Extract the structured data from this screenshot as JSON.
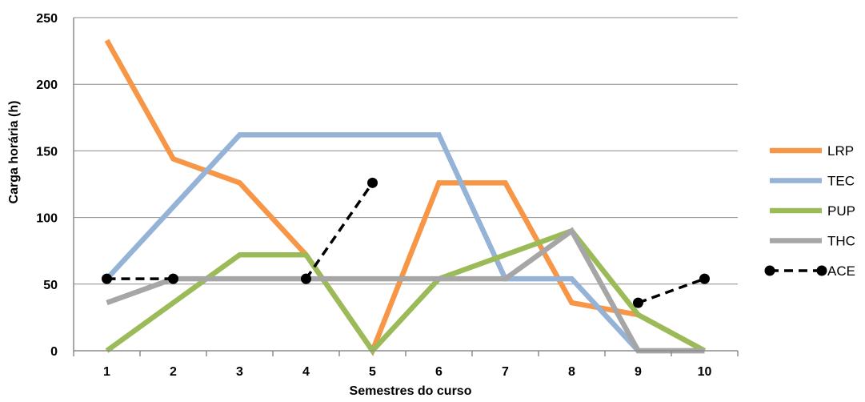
{
  "chart_data": {
    "type": "line",
    "title": "",
    "xlabel": "Semestres do curso",
    "ylabel": "Carga horária (h)",
    "categories": [
      "1",
      "2",
      "3",
      "4",
      "5",
      "6",
      "7",
      "8",
      "9",
      "10"
    ],
    "yticks": [
      "0",
      "50",
      "100",
      "150",
      "200",
      "250"
    ],
    "ylim": [
      0,
      250
    ],
    "grid": "horizontal",
    "legend_position": "right",
    "series": [
      {
        "name": "LRP",
        "color": "#F79646",
        "style": "solid",
        "values": [
          233,
          144,
          126,
          72,
          0,
          126,
          126,
          36,
          27,
          0
        ]
      },
      {
        "name": "TEC",
        "color": "#95B3D7",
        "style": "solid",
        "values": [
          54,
          108,
          162,
          162,
          162,
          162,
          54,
          54,
          0,
          0
        ]
      },
      {
        "name": "PUP",
        "color": "#9BBB59",
        "style": "solid",
        "values": [
          0,
          36,
          72,
          72,
          0,
          54,
          72,
          90,
          27,
          0
        ]
      },
      {
        "name": "THC",
        "color": "#A6A6A6",
        "style": "solid",
        "values": [
          36,
          54,
          54,
          54,
          54,
          54,
          54,
          90,
          0,
          0
        ]
      },
      {
        "name": "ACE",
        "color": "#000000",
        "style": "dashed-markers",
        "values": [
          54,
          54,
          null,
          54,
          126,
          null,
          null,
          null,
          36,
          54
        ]
      }
    ]
  }
}
